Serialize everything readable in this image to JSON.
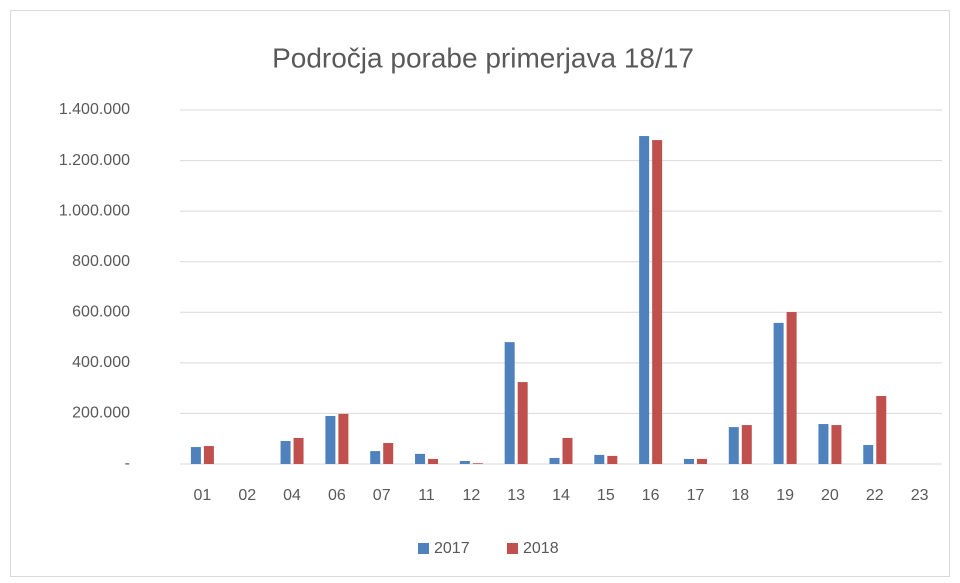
{
  "chart_data": {
    "type": "bar",
    "title": "Področja porabe primerjava 18/17",
    "categories": [
      "01",
      "02",
      "04",
      "06",
      "07",
      "11",
      "12",
      "13",
      "14",
      "15",
      "16",
      "17",
      "18",
      "19",
      "20",
      "22",
      "23"
    ],
    "series": [
      {
        "name": "2017",
        "color": "#4f81bd",
        "values": [
          67000,
          0,
          91000,
          190000,
          51000,
          40000,
          12000,
          482000,
          24000,
          36000,
          1297000,
          20000,
          146000,
          558000,
          158000,
          75000,
          0
        ]
      },
      {
        "name": "2018",
        "color": "#c0504d",
        "values": [
          71000,
          0,
          103000,
          198000,
          83000,
          20000,
          3000,
          324000,
          103000,
          32000,
          1281000,
          20000,
          154000,
          601000,
          154000,
          269000,
          0
        ]
      }
    ],
    "ylim": [
      0,
      1400000
    ],
    "yticks": [
      {
        "value": 0,
        "label": "-"
      },
      {
        "value": 200000,
        "label": "200.000"
      },
      {
        "value": 400000,
        "label": "400.000"
      },
      {
        "value": 600000,
        "label": "600.000"
      },
      {
        "value": 800000,
        "label": "800.000"
      },
      {
        "value": 1000000,
        "label": "1.000.000"
      },
      {
        "value": 1200000,
        "label": "1.200.000"
      },
      {
        "value": 1400000,
        "label": "1.400.000"
      }
    ],
    "grid": true,
    "legend": "bottom"
  }
}
